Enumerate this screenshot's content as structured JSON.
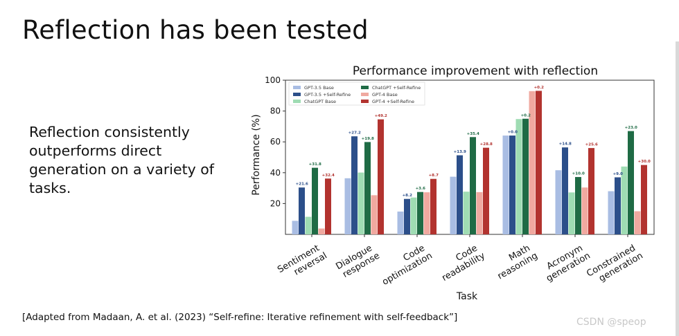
{
  "slide": {
    "title": "Reflection has been tested",
    "body": "Reflection consistently outperforms direct generation on a variety of tasks.",
    "citation": "[Adapted from Madaan, A. et al. (2023) “Self-refine: Iterative refinement with self-feedback”]",
    "watermark": "CSDN @speop"
  },
  "colors": {
    "gpt35_base": "#a9bde3",
    "gpt35_refine": "#2c4f8a",
    "chatgpt_base": "#9fdcb3",
    "chatgpt_refine": "#1f6b45",
    "gpt4_base": "#f0a9a0",
    "gpt4_refine": "#b2332f",
    "label_blue": "#2c4f8a",
    "label_green": "#1f6b45",
    "label_red": "#b2332f"
  },
  "chart_data": {
    "type": "bar",
    "title": "Performance improvement with reflection",
    "xlabel": "Task",
    "ylabel": "Performance (%)",
    "ylim": [
      0,
      100
    ],
    "yticks": [
      20,
      40,
      60,
      80,
      100
    ],
    "legend_position": "top-left",
    "categories": [
      [
        "Sentiment",
        "reversal"
      ],
      [
        "Dialogue",
        "response"
      ],
      [
        "Code",
        "optimization"
      ],
      [
        "Code",
        "readability"
      ],
      [
        "Math",
        "reasoning"
      ],
      [
        "Acronym",
        "generation"
      ],
      [
        "Constrained",
        "generation"
      ]
    ],
    "series": [
      {
        "name": "GPT-3.5 Base",
        "color_key": "gpt35_base",
        "values": [
          8.8,
          36.4,
          14.8,
          37.4,
          64.1,
          41.6,
          28.0
        ]
      },
      {
        "name": "GPT-3.5 +Self-Refine",
        "color_key": "gpt35_refine",
        "values": [
          30.4,
          63.6,
          23.0,
          51.3,
          64.1,
          56.4,
          37.0
        ]
      },
      {
        "name": "ChatGPT Base",
        "color_key": "chatgpt_base",
        "values": [
          11.4,
          40.1,
          23.9,
          27.7,
          74.8,
          27.2,
          44.0
        ]
      },
      {
        "name": "ChatGPT +Self-Refine",
        "color_key": "chatgpt_refine",
        "values": [
          43.2,
          59.9,
          27.5,
          63.1,
          75.0,
          37.2,
          67.0
        ]
      },
      {
        "name": "GPT-4 Base",
        "color_key": "gpt4_base",
        "values": [
          3.8,
          25.4,
          27.3,
          27.4,
          92.9,
          30.4,
          15.0
        ]
      },
      {
        "name": "GPT-4 +Self-Refine",
        "color_key": "gpt4_refine",
        "values": [
          36.2,
          74.6,
          36.0,
          56.2,
          93.1,
          56.0,
          45.0
        ]
      }
    ],
    "improvements": [
      {
        "series_index": 1,
        "color_key": "label_blue",
        "labels": [
          "+21.6",
          "+27.2",
          "+8.2",
          "+13.9",
          "+0.0",
          "+14.8",
          "+9.0"
        ]
      },
      {
        "series_index": 3,
        "color_key": "label_green",
        "labels": [
          "+31.8",
          "+19.8",
          "+3.6",
          "+35.4",
          "+0.2",
          "+10.0",
          "+23.0"
        ]
      },
      {
        "series_index": 5,
        "color_key": "label_red",
        "labels": [
          "+32.4",
          "+49.2",
          "+8.7",
          "+28.8",
          "+0.2",
          "+25.6",
          "+30.0"
        ]
      }
    ]
  }
}
